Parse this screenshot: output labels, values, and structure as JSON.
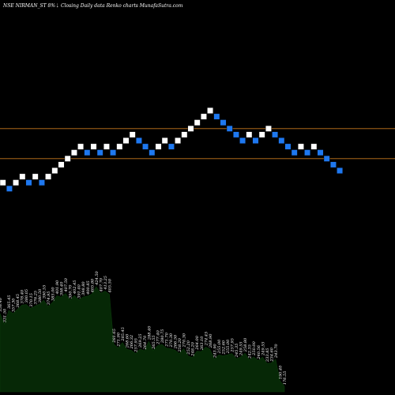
{
  "chart_data": {
    "type": "renko",
    "header": {
      "symbol": "NSE NIRMAN_ST",
      "change": "8%",
      "arrow": "⇣",
      "caption": "Closing Daily data  Renko  charts MunafaSutra.com"
    },
    "reference_lines": [
      415.5,
      405.5
    ],
    "bricks": [
      {
        "v": 397.5,
        "d": "up"
      },
      {
        "v": 395.5,
        "d": "down"
      },
      {
        "v": 397.5,
        "d": "up"
      },
      {
        "v": 399.5,
        "d": "up"
      },
      {
        "v": 397.5,
        "d": "down"
      },
      {
        "v": 399.5,
        "d": "up"
      },
      {
        "v": 397.5,
        "d": "down"
      },
      {
        "v": 399.5,
        "d": "up"
      },
      {
        "v": 401.5,
        "d": "up"
      },
      {
        "v": 403.5,
        "d": "up"
      },
      {
        "v": 405.5,
        "d": "up"
      },
      {
        "v": 407.5,
        "d": "up"
      },
      {
        "v": 409.5,
        "d": "up"
      },
      {
        "v": 407.5,
        "d": "down"
      },
      {
        "v": 409.5,
        "d": "up"
      },
      {
        "v": 407.5,
        "d": "down"
      },
      {
        "v": 409.5,
        "d": "up"
      },
      {
        "v": 407.5,
        "d": "down"
      },
      {
        "v": 409.5,
        "d": "up"
      },
      {
        "v": 411.5,
        "d": "up"
      },
      {
        "v": 413.5,
        "d": "up"
      },
      {
        "v": 411.5,
        "d": "down"
      },
      {
        "v": 409.5,
        "d": "down"
      },
      {
        "v": 407.5,
        "d": "down"
      },
      {
        "v": 409.5,
        "d": "up"
      },
      {
        "v": 411.5,
        "d": "up"
      },
      {
        "v": 409.5,
        "d": "down"
      },
      {
        "v": 411.5,
        "d": "up"
      },
      {
        "v": 413.5,
        "d": "up"
      },
      {
        "v": 415.5,
        "d": "up"
      },
      {
        "v": 417.5,
        "d": "up"
      },
      {
        "v": 419.5,
        "d": "up"
      },
      {
        "v": 421.5,
        "d": "up"
      },
      {
        "v": 419.5,
        "d": "down"
      },
      {
        "v": 417.5,
        "d": "down"
      },
      {
        "v": 415.5,
        "d": "down"
      },
      {
        "v": 413.5,
        "d": "down"
      },
      {
        "v": 411.5,
        "d": "down"
      },
      {
        "v": 413.5,
        "d": "up"
      },
      {
        "v": 411.5,
        "d": "down"
      },
      {
        "v": 413.5,
        "d": "up"
      },
      {
        "v": 415.5,
        "d": "up"
      },
      {
        "v": 413.5,
        "d": "down"
      },
      {
        "v": 411.5,
        "d": "down"
      },
      {
        "v": 409.5,
        "d": "down"
      },
      {
        "v": 407.5,
        "d": "down"
      },
      {
        "v": 409.5,
        "d": "up"
      },
      {
        "v": 407.5,
        "d": "down"
      },
      {
        "v": 409.5,
        "d": "up"
      },
      {
        "v": 407.5,
        "d": "down"
      },
      {
        "v": 405.5,
        "d": "down"
      },
      {
        "v": 403.5,
        "d": "down"
      },
      {
        "v": 401.5,
        "d": "down"
      }
    ],
    "volume_labels": [
      "358.40",
      "331.50",
      "365.45",
      "357.30",
      "368.45",
      "378.40",
      "380.05",
      "370.15",
      "376.25",
      "380.50",
      "390.55",
      "374.95",
      "385.00",
      "401.90",
      "398.40",
      "407.50",
      "390.70",
      "402.45",
      "391.40",
      "398.80",
      "400.85",
      "405.80",
      "424.50",
      "407.70",
      "413.25",
      "405.50",
      "281.65",
      "271.90",
      "285.45",
      "268.60",
      "266.32",
      "257.95",
      "269.25",
      "264.70",
      "288.40",
      "265.55",
      "277.40",
      "280.75",
      "271.70",
      "270.30",
      "266.50",
      "258.20",
      "270.30",
      "252.20",
      "248.20",
      "264.00",
      "263.10",
      "274.45",
      "268.90",
      "243.90",
      "255.00",
      "252.60",
      "255.00",
      "257.95",
      "245.35",
      "249.55",
      "258.80",
      "242.35",
      "250.00",
      "240.56",
      "249.55",
      "233.85",
      "234.60",
      "243.70",
      "190.40",
      "176.55"
    ]
  }
}
